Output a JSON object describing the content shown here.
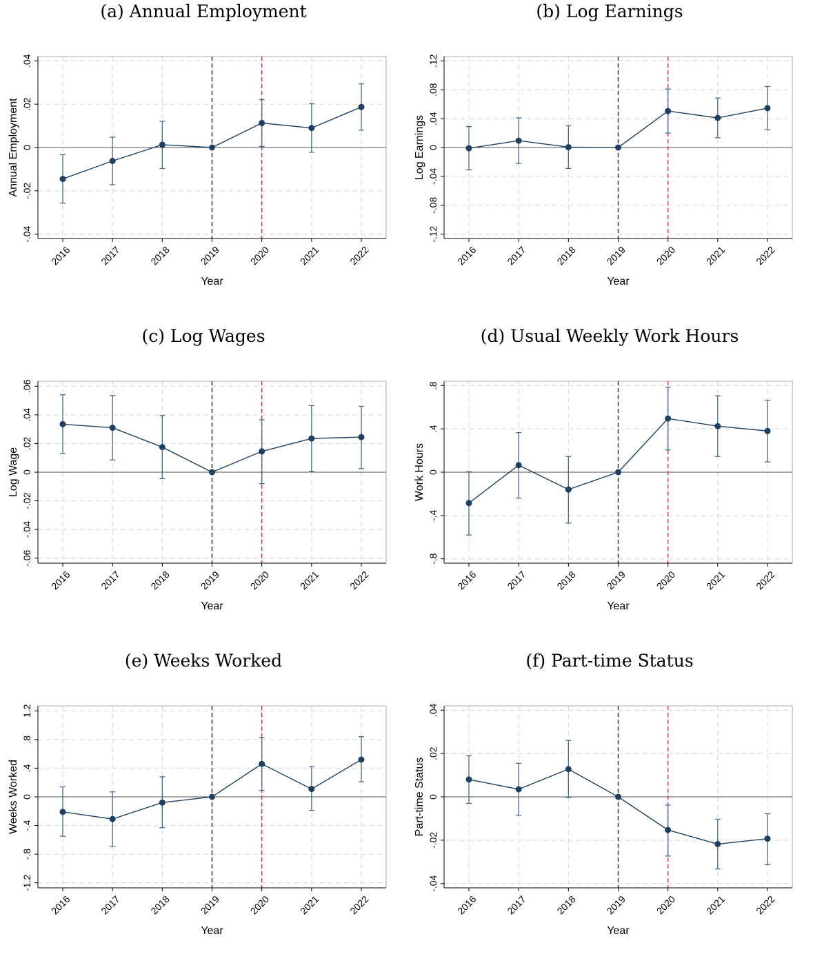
{
  "chart_data": [
    {
      "type": "line",
      "title": "(a) Annual Employment",
      "xlabel": "Year",
      "ylabel": "Annual Employment",
      "categories": [
        "2016",
        "2017",
        "2018",
        "2019",
        "2020",
        "2021",
        "2022"
      ],
      "values": [
        -0.0145,
        -0.0062,
        0.0013,
        0.0,
        0.0113,
        0.009,
        0.0187
      ],
      "ci_lower": [
        -0.0257,
        -0.0172,
        -0.0097,
        0.0,
        0.0005,
        -0.0022,
        0.008
      ],
      "ci_upper": [
        -0.0033,
        0.0048,
        0.0121,
        0.0,
        0.0221,
        0.0202,
        0.0294
      ],
      "ylim": [
        -0.042,
        0.042
      ],
      "yticks": [
        -0.04,
        -0.02,
        0,
        0.02,
        0.04
      ],
      "ytick_labels": [
        "-.04",
        "-.02",
        "0",
        ".02",
        ".04"
      ],
      "vlines": [
        {
          "x": "2019",
          "color": "#333333"
        },
        {
          "x": "2020",
          "color": "#c8346a"
        }
      ],
      "grid": true
    },
    {
      "type": "line",
      "title": "(b) Log Earnings",
      "xlabel": "Year",
      "ylabel": "Log Earnings",
      "categories": [
        "2016",
        "2017",
        "2018",
        "2019",
        "2020",
        "2021",
        "2022"
      ],
      "values": [
        -0.001,
        0.0095,
        0.0005,
        0.0,
        0.0505,
        0.041,
        0.0545
      ],
      "ci_lower": [
        -0.031,
        -0.022,
        -0.029,
        0.0,
        0.02,
        0.0135,
        0.0245
      ],
      "ci_upper": [
        0.029,
        0.041,
        0.03,
        0.0,
        0.081,
        0.0685,
        0.0845
      ],
      "ylim": [
        -0.126,
        0.126
      ],
      "yticks": [
        -0.12,
        -0.08,
        -0.04,
        0,
        0.04,
        0.08,
        0.12
      ],
      "ytick_labels": [
        "-.12",
        "-.08",
        "-.04",
        "0",
        ".04",
        ".08",
        ".12"
      ],
      "vlines": [
        {
          "x": "2019",
          "color": "#333333"
        },
        {
          "x": "2020",
          "color": "#c8346a"
        }
      ],
      "grid": true
    },
    {
      "type": "line",
      "title": "(c) Log Wages",
      "xlabel": "Year",
      "ylabel": "Log Wage",
      "categories": [
        "2016",
        "2017",
        "2018",
        "2019",
        "2020",
        "2021",
        "2022"
      ],
      "values": [
        0.0335,
        0.031,
        0.0175,
        0.0,
        0.0145,
        0.0235,
        0.0245
      ],
      "ci_lower": [
        0.013,
        0.0085,
        -0.0045,
        0.0,
        -0.008,
        0.0005,
        0.0025
      ],
      "ci_upper": [
        0.054,
        0.0535,
        0.0395,
        0.0,
        0.0365,
        0.0465,
        0.046
      ],
      "ylim": [
        -0.0635,
        0.0635
      ],
      "yticks": [
        -0.06,
        -0.04,
        -0.02,
        0,
        0.02,
        0.04,
        0.06
      ],
      "ytick_labels": [
        "-.06",
        "-.04",
        "-.02",
        "0",
        ".02",
        ".04",
        ".06"
      ],
      "vlines": [
        {
          "x": "2019",
          "color": "#333333"
        },
        {
          "x": "2020",
          "color": "#c8346a"
        }
      ],
      "grid": true
    },
    {
      "type": "line",
      "title": "(d) Usual Weekly Work Hours",
      "xlabel": "Year",
      "ylabel": "Work Hours",
      "categories": [
        "2016",
        "2017",
        "2018",
        "2019",
        "2020",
        "2021",
        "2022"
      ],
      "values": [
        -0.285,
        0.065,
        -0.16,
        0.0,
        0.495,
        0.425,
        0.38
      ],
      "ci_lower": [
        -0.58,
        -0.24,
        -0.47,
        0.0,
        0.205,
        0.145,
        0.095
      ],
      "ci_upper": [
        0.005,
        0.365,
        0.145,
        0.0,
        0.785,
        0.705,
        0.665
      ],
      "ylim": [
        -0.84,
        0.84
      ],
      "yticks": [
        -0.8,
        -0.4,
        0,
        0.4,
        0.8
      ],
      "ytick_labels": [
        "-.8",
        "-.4",
        "0",
        ".4",
        ".8"
      ],
      "vlines": [
        {
          "x": "2019",
          "color": "#333333"
        },
        {
          "x": "2020",
          "color": "#c8346a"
        }
      ],
      "grid": true
    },
    {
      "type": "line",
      "title": "(e) Weeks Worked",
      "xlabel": "Year",
      "ylabel": "Weeks Worked",
      "categories": [
        "2016",
        "2017",
        "2018",
        "2019",
        "2020",
        "2021",
        "2022"
      ],
      "values": [
        -0.21,
        -0.31,
        -0.08,
        0.0,
        0.46,
        0.11,
        0.52
      ],
      "ci_lower": [
        -0.55,
        -0.69,
        -0.43,
        0.0,
        0.09,
        -0.19,
        0.21
      ],
      "ci_upper": [
        0.14,
        0.07,
        0.28,
        0.0,
        0.83,
        0.42,
        0.84
      ],
      "ylim": [
        -1.27,
        1.27
      ],
      "yticks": [
        -1.2,
        -0.8,
        -0.4,
        0,
        0.4,
        0.8,
        1.2
      ],
      "ytick_labels": [
        "-1.2",
        "-.8",
        "-.4",
        "0",
        ".4",
        ".8",
        "1.2"
      ],
      "vlines": [
        {
          "x": "2019",
          "color": "#333333"
        },
        {
          "x": "2020",
          "color": "#c8346a"
        }
      ],
      "grid": true
    },
    {
      "type": "line",
      "title": "(f) Part-time Status",
      "xlabel": "Year",
      "ylabel": "Part-time Status",
      "categories": [
        "2016",
        "2017",
        "2018",
        "2019",
        "2020",
        "2021",
        "2022"
      ],
      "values": [
        0.008,
        0.0035,
        0.0128,
        0.0,
        -0.0153,
        -0.0218,
        -0.0193
      ],
      "ci_lower": [
        -0.003,
        -0.0085,
        -0.0003,
        0.0,
        -0.0273,
        -0.0333,
        -0.0313
      ],
      "ci_upper": [
        0.019,
        0.0155,
        0.026,
        0.0,
        -0.0038,
        -0.0103,
        -0.0078
      ],
      "ylim": [
        -0.042,
        0.042
      ],
      "yticks": [
        -0.04,
        -0.02,
        0,
        0.02,
        0.04
      ],
      "ytick_labels": [
        "-.04",
        "-.02",
        "0",
        ".02",
        ".04"
      ],
      "vlines": [
        {
          "x": "2019",
          "color": "#333333"
        },
        {
          "x": "2020",
          "color": "#c8346a"
        }
      ],
      "grid": true
    }
  ],
  "colors": {
    "series": "#1f3f5f",
    "ci": "#4a6a8a",
    "grid": "#dcdcdc",
    "baseline_2019": "#333333",
    "policy_2020": "#c8346a",
    "zero_line": "#555555",
    "axis": "#000000"
  }
}
